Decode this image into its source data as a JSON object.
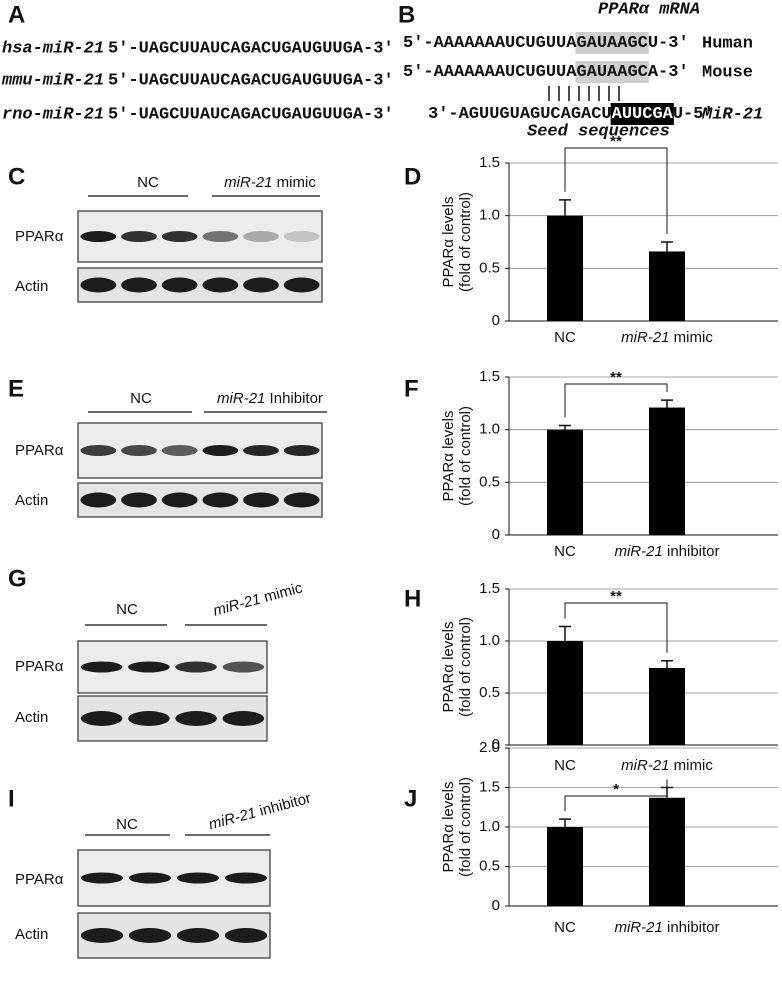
{
  "panel_a": {
    "label": "A",
    "rows": [
      {
        "name": "hsa-miR-21",
        "sequence": "5′-UAGCUUAUCAGACUGAUGUUGA-3′"
      },
      {
        "name": "mmu-miR-21",
        "sequence": "5′-UAGCUUAUCAGACUGAUGUUGA-3′"
      },
      {
        "name": "rno-miR-21",
        "sequence": "5′-UAGCUUAUCAGACUGAUGUUGA-3′"
      }
    ]
  },
  "panel_b": {
    "label": "B",
    "title": "PPARα mRNA",
    "rows": [
      {
        "parts": [
          "5′-AAAAAAAUCUGUUA",
          "GAUAAGC",
          "U-3′"
        ],
        "species": "Human"
      },
      {
        "parts": [
          "5′-AAAAAAAUCUGUUA",
          "GAUAAGC",
          "A-3′"
        ],
        "species": "Mouse"
      },
      {
        "parts": [
          "3′-AGUUGUAGUCAGACU",
          "AUUCGA",
          "U-5′"
        ],
        "species": "MiR-21"
      }
    ],
    "note": "Seed sequences"
  },
  "blots": [
    {
      "label": "C",
      "groups": [
        "NC",
        "miR-21 mimic"
      ],
      "rows": [
        "PPARα",
        "Actin"
      ]
    },
    {
      "label": "E",
      "groups": [
        "NC",
        "miR-21 Inhibitor"
      ],
      "rows": [
        "PPARα",
        "Actin"
      ]
    },
    {
      "label": "G",
      "groups": [
        "NC",
        "miR-21 mimic"
      ],
      "rows": [
        "PPARα",
        "Actin"
      ]
    },
    {
      "label": "I",
      "groups": [
        "NC",
        "miR-21 inhibitor"
      ],
      "rows": [
        "PPARα",
        "Actin"
      ]
    }
  ],
  "chart_data": [
    {
      "type": "bar",
      "panel_label": "D",
      "ylabel": [
        "PPARα levels",
        "(fold of control)"
      ],
      "categories": [
        "NC",
        "miR-21 mimic"
      ],
      "values": [
        1.0,
        0.66
      ],
      "errors": [
        0.15,
        0.09
      ],
      "significance": "**",
      "color": "#000000",
      "ylim": [
        0,
        1.5
      ],
      "yticks": [
        0,
        0.5,
        {
          "value": 1,
          "label": "1.0"
        },
        1.5
      ],
      "grid": true
    },
    {
      "type": "bar",
      "panel_label": "F",
      "ylabel": [
        "PPARα levels",
        "(fold of control)"
      ],
      "categories": [
        "NC",
        "miR-21 inhibitor"
      ],
      "values": [
        1.0,
        1.21
      ],
      "errors": [
        0.04,
        0.07
      ],
      "significance": "**",
      "color": "#000000",
      "ylim": [
        0,
        1.5
      ],
      "yticks": [
        0,
        0.5,
        {
          "value": 1,
          "label": "1.0"
        },
        1.5
      ],
      "grid": true
    },
    {
      "type": "bar",
      "panel_label": "H",
      "ylabel": [
        "PPARα levels",
        "(fold of control)"
      ],
      "categories": [
        "NC",
        "miR-21 mimic"
      ],
      "values": [
        1.0,
        0.74
      ],
      "errors": [
        0.14,
        0.07
      ],
      "significance": "**",
      "color": "#000000",
      "ylim": [
        0,
        1.5
      ],
      "yticks": [
        0,
        0.5,
        {
          "value": 1,
          "label": "1.0"
        },
        1.5
      ],
      "grid": true
    },
    {
      "type": "bar",
      "panel_label": "J",
      "ylabel": [
        "PPARα levels",
        "(fold of control)"
      ],
      "categories": [
        "NC",
        "miR-21 inhibitor"
      ],
      "values": [
        1.0,
        1.37
      ],
      "errors": [
        0.1,
        0.13
      ],
      "significance": "*",
      "color": "#000000",
      "ylim": [
        0,
        2
      ],
      "yticks": [
        0,
        0.5,
        {
          "value": 1,
          "label": "1.0"
        },
        1.5,
        {
          "value": 2,
          "label": "2.0"
        }
      ],
      "grid": true
    }
  ]
}
